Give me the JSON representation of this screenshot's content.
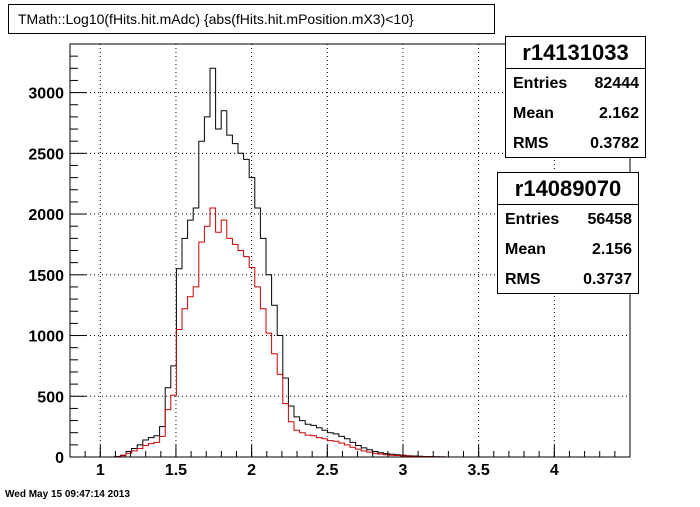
{
  "chart_data": {
    "type": "histogram",
    "title": "TMath::Log10(fHits.hit.mAdc) {abs(fHits.hit.mPosition.mX3)<10}",
    "xlim": [
      0.8,
      4.5
    ],
    "ylim": [
      0,
      3400
    ],
    "x_ticks": [
      1,
      1.5,
      2,
      2.5,
      3,
      3.5,
      4
    ],
    "x_tick_labels": [
      "1",
      "1.5",
      "2",
      "2.5",
      "3",
      "3.5",
      "4"
    ],
    "y_ticks": [
      0,
      500,
      1000,
      1500,
      2000,
      2500,
      3000
    ],
    "y_tick_labels": [
      "0",
      "500",
      "1000",
      "1500",
      "2000",
      "2500",
      "3000"
    ],
    "grid": true,
    "bin_start": 0.8,
    "bin_width": 0.037,
    "series": [
      {
        "name": "r14131033",
        "color": "#000000",
        "counts": [
          0,
          0,
          0,
          0,
          0,
          0,
          0,
          0,
          3,
          15,
          45,
          70,
          100,
          140,
          160,
          175,
          250,
          570,
          750,
          1550,
          1800,
          1950,
          2050,
          2600,
          2800,
          3200,
          2700,
          2850,
          2650,
          2580,
          2500,
          2450,
          2300,
          2050,
          1800,
          1500,
          1250,
          1000,
          650,
          420,
          330,
          300,
          270,
          260,
          240,
          220,
          200,
          190,
          170,
          150,
          120,
          95,
          75,
          60,
          45,
          35,
          28,
          22,
          18,
          14,
          10,
          8,
          6,
          4,
          3,
          2,
          1,
          0,
          0,
          0,
          0,
          0,
          0,
          0,
          0,
          0,
          0,
          0,
          0,
          0,
          0,
          0,
          0,
          0,
          0,
          0,
          0,
          0,
          0,
          0,
          0,
          0,
          0,
          0,
          0,
          0,
          0,
          0,
          0,
          0
        ],
        "stats": {
          "name": "r14131033",
          "rows": [
            {
              "label": "Entries",
              "value": "82444"
            },
            {
              "label": "Mean",
              "value": "2.162"
            },
            {
              "label": "RMS",
              "value": "0.3782"
            }
          ]
        }
      },
      {
        "name": "r14089070",
        "color": "#cc0000",
        "counts": [
          0,
          0,
          0,
          0,
          0,
          0,
          0,
          0,
          2,
          10,
          30,
          50,
          70,
          95,
          110,
          120,
          170,
          390,
          510,
          1050,
          1220,
          1320,
          1400,
          1770,
          1900,
          2050,
          1850,
          1950,
          1800,
          1750,
          1700,
          1650,
          1560,
          1400,
          1220,
          1020,
          850,
          680,
          440,
          290,
          220,
          200,
          180,
          175,
          160,
          150,
          135,
          130,
          115,
          100,
          80,
          65,
          50,
          40,
          30,
          24,
          19,
          15,
          12,
          9,
          7,
          5,
          4,
          3,
          2,
          1,
          1,
          0,
          0,
          0,
          0,
          0,
          0,
          0,
          0,
          0,
          0,
          0,
          0,
          0,
          0,
          0,
          0,
          0,
          0,
          0,
          0,
          0,
          0,
          0,
          0,
          0,
          0,
          0,
          0,
          0,
          0,
          0,
          0,
          0
        ],
        "stats": {
          "name": "r14089070",
          "rows": [
            {
              "label": "Entries",
              "value": "56458"
            },
            {
              "label": "Mean",
              "value": "2.156"
            },
            {
              "label": "RMS",
              "value": "0.3737"
            }
          ]
        }
      }
    ]
  },
  "timestamp": "Wed May 15 09:47:14 2013"
}
